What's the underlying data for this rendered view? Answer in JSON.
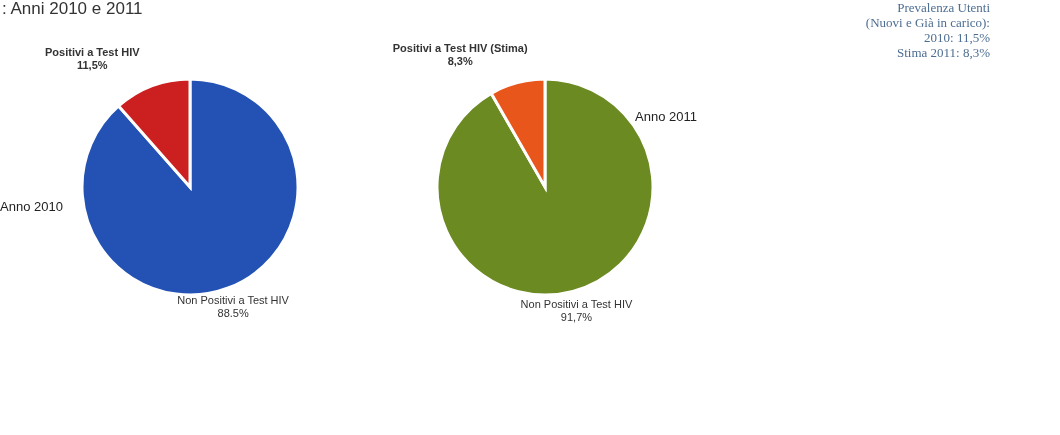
{
  "chart_data": [
    {
      "type": "pie",
      "title": "Anno 2010",
      "annotations": [
        ": Anni 2010 e 2011"
      ],
      "categories": [
        "Non Positivi a Test HIV",
        "Positivi a Test HIV"
      ],
      "values": [
        88.5,
        11.5
      ],
      "value_labels": [
        "88.5%",
        "11,5%"
      ],
      "colors": [
        "#2352b4",
        "#cc1f1f"
      ]
    },
    {
      "type": "pie",
      "title": "Anno 2011",
      "annotations": [
        "Prevalenza Utenti (Nuovi e Già in carico):",
        "2010: 11,5%",
        "Stima 2011: 8,3%"
      ],
      "categories": [
        "Non Positivi a Test HIV",
        "Positivi a Test HIV (Stima)"
      ],
      "values": [
        91.7,
        8.3
      ],
      "value_labels": [
        "91,7%",
        "8,3%"
      ],
      "colors": [
        "#6b8a22",
        "#e8561c"
      ]
    }
  ]
}
